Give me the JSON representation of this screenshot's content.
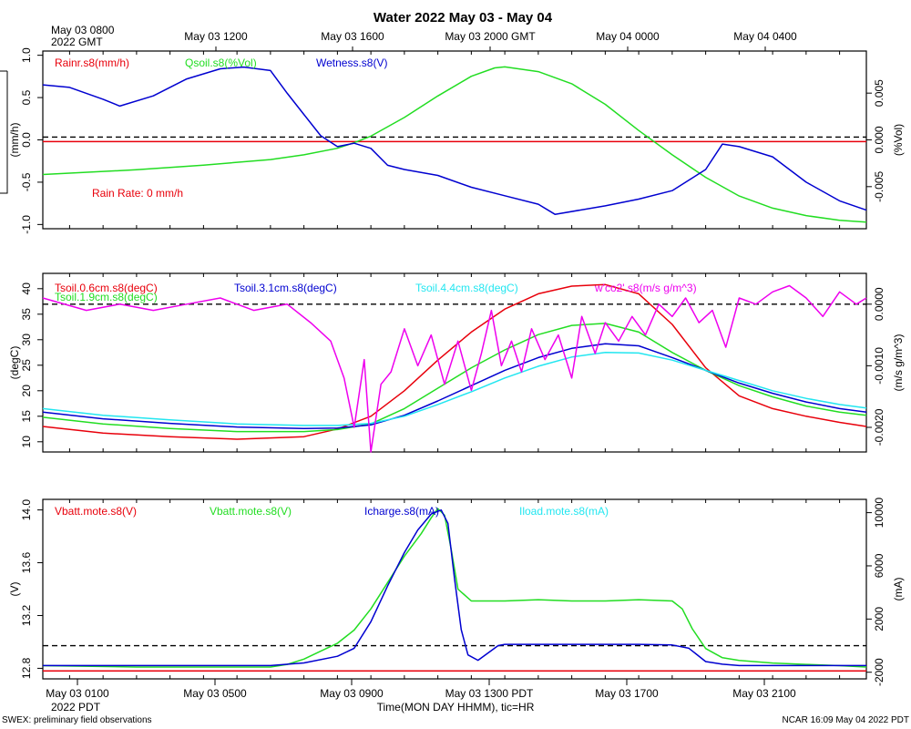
{
  "title": "Water 2022 May 03 - May 04",
  "top_time_axis": {
    "corner_label_line1": "May 03 0800",
    "corner_label_line2": "2022 GMT",
    "ticks": [
      "May 03 1200",
      "May 03 1600",
      "May 03 2000 GMT",
      "May 04 0000",
      "May 04 0400"
    ]
  },
  "bottom_time_axis": {
    "corner_label": "2022 PDT",
    "ticks": [
      "May 03 0100",
      "May 03 0500",
      "May 03 0900",
      "May 03 1300 PDT",
      "May 03 1700",
      "May 03 2100"
    ],
    "xlabel": "Time(MON DAY HHMM), tic=HR"
  },
  "footer_left": "SWEX: preliminary field observations",
  "footer_right": "NCAR 16:09 May 04 2022 PDT",
  "colors": {
    "red": "#e8000b",
    "green": "#22dd22",
    "blue": "#0000d0",
    "cyan": "#22e6f0",
    "magenta": "#ee00ee"
  },
  "chart_data": [
    {
      "type": "line",
      "panel": "top",
      "x_unit": "hours since May 03 0000 PDT",
      "xlim": [
        -0.8,
        23.8
      ],
      "ylabel_left": "(mm/h)",
      "ylim_left": [
        -1.05,
        1.05
      ],
      "yticks_left": [
        "1.0",
        "0.5",
        "0.0",
        "-0.5",
        "-1.0"
      ],
      "ytick_values_left": [
        1.0,
        0.5,
        0.0,
        -0.5,
        -1.0
      ],
      "ylabel_right": "(%Vol)",
      "ylim_right": [
        -0.0095,
        0.0095
      ],
      "yticks_right": [
        "0.005",
        "0.000",
        "-0.005"
      ],
      "ytick_values_right": [
        0.005,
        0.0,
        -0.005
      ],
      "annotation": "Rain Rate: 0 mm/h",
      "series": [
        {
          "name": "Rainr.s8(mm/h)",
          "color": "red",
          "axis": "left",
          "x": [
            -0.8,
            23.8
          ],
          "y": [
            -0.02,
            -0.02
          ]
        },
        {
          "name": "Qsoil.s8(%Vol)",
          "color": "green",
          "axis": "right",
          "x": [
            -0.8,
            2,
            4,
            6,
            7,
            8,
            8.5,
            9,
            10,
            11,
            12,
            12.7,
            13,
            14,
            15,
            16,
            17,
            18,
            19,
            20,
            21,
            22,
            23,
            23.8
          ],
          "y": [
            -0.0037,
            -0.0032,
            -0.0027,
            -0.0021,
            -0.0016,
            -0.0009,
            -0.0003,
            0.0004,
            0.0024,
            0.0047,
            0.0068,
            0.0077,
            0.0078,
            0.0073,
            0.006,
            0.0038,
            0.001,
            -0.0016,
            -0.004,
            -0.006,
            -0.0073,
            -0.0081,
            -0.0086,
            -0.0088
          ]
        },
        {
          "name": "Wetness.s8(V)",
          "color": "blue",
          "axis": "left",
          "x": [
            -0.8,
            0,
            1,
            1.5,
            2.5,
            3.5,
            4.5,
            5.2,
            6,
            6.5,
            7,
            7.5,
            8,
            8.5,
            9,
            9.5,
            10,
            11,
            12,
            13,
            14,
            14.5,
            16,
            17,
            18,
            19,
            19.5,
            20,
            21,
            22,
            23,
            23.8
          ],
          "y": [
            0.65,
            0.62,
            0.48,
            0.4,
            0.52,
            0.72,
            0.84,
            0.86,
            0.82,
            0.55,
            0.3,
            0.05,
            -0.08,
            -0.04,
            -0.1,
            -0.3,
            -0.35,
            -0.42,
            -0.56,
            -0.66,
            -0.76,
            -0.88,
            -0.78,
            -0.7,
            -0.6,
            -0.35,
            -0.05,
            -0.08,
            -0.2,
            -0.5,
            -0.72,
            -0.83
          ]
        }
      ],
      "dashed_reference_lines_right": [
        0.0003
      ]
    },
    {
      "type": "line",
      "panel": "middle",
      "x_unit": "hours since May 03 0000 PDT",
      "xlim": [
        -0.8,
        23.8
      ],
      "ylabel_left": "(degC)",
      "ylim_left": [
        8,
        43
      ],
      "yticks_left": [
        "40",
        "35",
        "30",
        "25",
        "20",
        "15",
        "10"
      ],
      "ytick_values_left": [
        40,
        35,
        30,
        25,
        20,
        15,
        10
      ],
      "ylabel_right": "(m/s g/m^3)",
      "ylim_right": [
        -0.0024,
        0.0005
      ],
      "yticks_right": [
        "0.0000",
        "-0.0010",
        "-0.0020"
      ],
      "ytick_values_right": [
        0.0,
        -0.001,
        -0.002
      ],
      "series": [
        {
          "name": "Tsoil.0.6cm.s8(degC)",
          "color": "red",
          "axis": "left",
          "x": [
            -0.8,
            1,
            3,
            5,
            7,
            8,
            9,
            10,
            11,
            12,
            13,
            14,
            15,
            16,
            17,
            18,
            19,
            20,
            21,
            22,
            23,
            23.8
          ],
          "y": [
            13.0,
            11.7,
            11.0,
            10.5,
            11.0,
            12.5,
            15.0,
            20.0,
            26.0,
            31.5,
            36.0,
            39.0,
            40.5,
            40.8,
            39.0,
            33.0,
            24.5,
            19.0,
            16.5,
            15.0,
            13.8,
            13.0
          ]
        },
        {
          "name": "Tsoil.1.9cm.s8(degC)",
          "color": "green",
          "axis": "left",
          "x": [
            -0.8,
            1,
            3,
            5,
            7,
            8,
            9,
            10,
            11,
            12,
            13,
            14,
            15,
            16,
            17,
            18,
            19,
            20,
            21,
            22,
            23,
            23.8
          ],
          "y": [
            14.8,
            13.5,
            12.6,
            12.0,
            12.0,
            12.4,
            13.5,
            16.5,
            20.5,
            24.5,
            28.0,
            31.0,
            32.8,
            33.2,
            31.5,
            27.5,
            24.0,
            21.0,
            18.8,
            17.0,
            15.8,
            15.2
          ]
        },
        {
          "name": "Tsoil.3.1cm.s8(degC)",
          "color": "blue",
          "axis": "left",
          "x": [
            -0.8,
            1,
            3,
            5,
            7,
            8,
            9,
            10,
            11,
            12,
            13,
            14,
            15,
            16,
            17,
            18,
            19,
            20,
            21,
            22,
            23,
            23.8
          ],
          "y": [
            15.8,
            14.5,
            13.6,
            12.9,
            12.6,
            12.7,
            13.3,
            15.2,
            18.0,
            21.0,
            24.0,
            26.5,
            28.3,
            29.2,
            28.8,
            26.5,
            24.0,
            21.5,
            19.5,
            17.8,
            16.5,
            15.8
          ]
        },
        {
          "name": "Tsoil.4.4cm.s8(degC)",
          "color": "cyan",
          "axis": "left",
          "x": [
            -0.8,
            1,
            3,
            5,
            7,
            8,
            9,
            10,
            11,
            12,
            13,
            14,
            15,
            16,
            17,
            18,
            19,
            20,
            21,
            22,
            23,
            23.8
          ],
          "y": [
            16.5,
            15.2,
            14.3,
            13.5,
            13.2,
            13.2,
            13.6,
            15.0,
            17.3,
            19.8,
            22.5,
            24.8,
            26.6,
            27.5,
            27.4,
            26.0,
            24.0,
            22.0,
            20.0,
            18.5,
            17.3,
            16.6
          ]
        },
        {
          "name": "w'co2'.s8(m/s g/m^3)",
          "color": "magenta",
          "axis": "right",
          "x": [
            -0.8,
            0.5,
            1.5,
            2.5,
            3.5,
            4.5,
            5.5,
            6.5,
            7.2,
            7.8,
            8.2,
            8.5,
            8.8,
            9.0,
            9.3,
            9.6,
            10.0,
            10.4,
            10.8,
            11.2,
            11.6,
            12.0,
            12.3,
            12.6,
            12.9,
            13.2,
            13.5,
            13.8,
            14.2,
            14.6,
            15.0,
            15.3,
            15.7,
            16.0,
            16.4,
            16.8,
            17.2,
            17.6,
            18.0,
            18.4,
            18.8,
            19.2,
            19.6,
            20.0,
            20.5,
            21.0,
            21.5,
            22.0,
            22.5,
            23.0,
            23.5,
            23.8
          ],
          "y": [
            0.0001,
            -0.0001,
            0.0,
            -0.0001,
            0.0,
            0.0001,
            -0.0001,
            0.0,
            -0.0003,
            -0.0006,
            -0.0012,
            -0.002,
            -0.0009,
            -0.0024,
            -0.0013,
            -0.0011,
            -0.0004,
            -0.001,
            -0.0005,
            -0.0013,
            -0.0006,
            -0.0014,
            -0.0008,
            -0.0001,
            -0.001,
            -0.0006,
            -0.0011,
            -0.0004,
            -0.0009,
            -0.0005,
            -0.0012,
            -0.0002,
            -0.0008,
            -0.0003,
            -0.0006,
            -0.0002,
            -0.0005,
            0.0,
            -0.0002,
            0.0001,
            -0.0003,
            -0.0001,
            -0.0007,
            0.0001,
            0.0,
            0.0002,
            0.0003,
            0.0001,
            -0.0002,
            0.0002,
            0.0,
            0.0001
          ]
        }
      ],
      "dashed_reference_lines_right": [
        0.0
      ]
    },
    {
      "type": "line",
      "panel": "bottom",
      "x_unit": "hours since May 03 0000 PDT",
      "xlim": [
        -0.8,
        23.8
      ],
      "ylabel_left": "(V)",
      "ylim_left": [
        12.72,
        14.08
      ],
      "yticks_left": [
        "14.0",
        "13.6",
        "13.2",
        "12.8"
      ],
      "ytick_values_left": [
        14.0,
        13.6,
        13.2,
        12.8
      ],
      "ylabel_right": "(mA)",
      "ylim_right": [
        -2500,
        11000
      ],
      "yticks_right": [
        "10000",
        "6000",
        "2000",
        "-2000"
      ],
      "ytick_values_right": [
        10000,
        6000,
        2000,
        -2000
      ],
      "series": [
        {
          "name": "Vbatt.mote.s8(V)",
          "color": "red",
          "axis": "left",
          "x": [
            -0.8,
            23.8
          ],
          "y": [
            12.78,
            12.78
          ]
        },
        {
          "name": "Vbatt.mote.s8(V)",
          "color": "green",
          "axis": "left",
          "x": [
            -0.8,
            2,
            4,
            6,
            6.5,
            7,
            7.5,
            8,
            8.5,
            9,
            9.5,
            10,
            10.5,
            10.8,
            11.0,
            11.2,
            11.4,
            11.6,
            12,
            13,
            14,
            15,
            16,
            17,
            18,
            18.3,
            18.6,
            19,
            19.5,
            20,
            21,
            22,
            23,
            23.8
          ],
          "y": [
            12.82,
            12.81,
            12.81,
            12.81,
            12.83,
            12.87,
            12.93,
            12.99,
            13.09,
            13.25,
            13.45,
            13.65,
            13.82,
            13.94,
            14.01,
            13.96,
            13.7,
            13.4,
            13.31,
            13.31,
            13.32,
            13.31,
            13.31,
            13.32,
            13.31,
            13.25,
            13.1,
            12.95,
            12.88,
            12.86,
            12.84,
            12.83,
            12.82,
            12.81
          ]
        },
        {
          "name": "Icharge.s8(mA)",
          "color": "blue",
          "axis": "right",
          "x": [
            -0.8,
            2,
            4,
            6,
            7,
            8,
            8.5,
            9,
            9.5,
            10,
            10.4,
            10.8,
            11.1,
            11.3,
            11.5,
            11.7,
            11.9,
            12.2,
            12.8,
            13,
            14,
            15,
            16,
            17,
            18,
            18.5,
            19,
            19.5,
            20,
            21,
            22,
            23,
            23.8
          ],
          "y": [
            -1500,
            -1500,
            -1500,
            -1500,
            -1300,
            -800,
            -200,
            1800,
            4500,
            7000,
            8700,
            9900,
            10200,
            9200,
            5000,
            1200,
            -700,
            -1100,
            0,
            100,
            100,
            100,
            100,
            100,
            50,
            -200,
            -1200,
            -1400,
            -1500,
            -1500,
            -1500,
            -1500,
            -1500
          ]
        },
        {
          "name": "Iload.mote.s8(mA)",
          "color": "cyan",
          "axis": "right",
          "x": [],
          "y": []
        }
      ],
      "dashed_reference_lines_right": [
        0
      ]
    }
  ]
}
